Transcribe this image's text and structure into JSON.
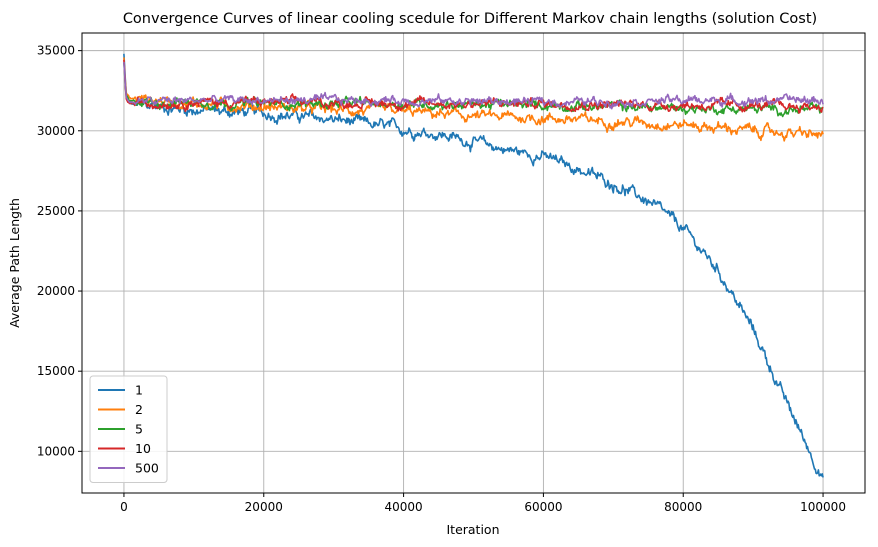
{
  "chart_data": {
    "type": "line",
    "title": "Convergence Curves of linear cooling scedule for Different Markov chain lengths (solution Cost)",
    "xlabel": "Iteration",
    "ylabel": "Average Path Length",
    "xlim": [
      -6000,
      106000
    ],
    "ylim": [
      7400,
      36100
    ],
    "x_ticks": [
      0,
      20000,
      40000,
      60000,
      80000,
      100000
    ],
    "x_tick_labels": [
      "0",
      "20000",
      "40000",
      "60000",
      "80000",
      "100000"
    ],
    "y_ticks": [
      10000,
      15000,
      20000,
      25000,
      30000,
      35000
    ],
    "y_tick_labels": [
      "10000",
      "15000",
      "20000",
      "25000",
      "30000",
      "35000"
    ],
    "grid": true,
    "legend_position": "lower-left",
    "series": [
      {
        "name": "1",
        "color": "#1f77b4",
        "x": [
          0,
          300,
          800,
          2000,
          5000,
          10000,
          15000,
          20000,
          25000,
          30000,
          35000,
          40000,
          45000,
          50000,
          55000,
          60000,
          65000,
          70000,
          75000,
          80000,
          85000,
          90000,
          95000,
          100000
        ],
        "y": [
          34800,
          32300,
          31700,
          31600,
          31500,
          31300,
          31200,
          31100,
          30900,
          30700,
          30400,
          30100,
          29800,
          29300,
          28800,
          28400,
          27600,
          26700,
          25600,
          23900,
          21300,
          17600,
          12800,
          8300
        ],
        "noise": 320
      },
      {
        "name": "2",
        "color": "#ff7f0e",
        "x": [
          0,
          300,
          800,
          2000,
          5000,
          10000,
          20000,
          30000,
          40000,
          50000,
          60000,
          70000,
          80000,
          90000,
          100000
        ],
        "y": [
          34500,
          32400,
          32000,
          32000,
          31900,
          31700,
          31500,
          31300,
          31200,
          30900,
          30800,
          30600,
          30400,
          30000,
          29700
        ],
        "noise": 300
      },
      {
        "name": "5",
        "color": "#2ca02c",
        "x": [
          0,
          300,
          800,
          2000,
          10000,
          20000,
          40000,
          60000,
          80000,
          100000
        ],
        "y": [
          34200,
          32200,
          31800,
          31800,
          31800,
          31700,
          31700,
          31600,
          31400,
          31300
        ],
        "noise": 260
      },
      {
        "name": "10",
        "color": "#d62728",
        "x": [
          0,
          300,
          800,
          2000,
          10000,
          20000,
          40000,
          60000,
          80000,
          100000
        ],
        "y": [
          34400,
          32000,
          31700,
          31700,
          31800,
          31800,
          31700,
          31700,
          31600,
          31500
        ],
        "noise": 260
      },
      {
        "name": "500",
        "color": "#9467bd",
        "x": [
          0,
          300,
          800,
          2000,
          10000,
          20000,
          40000,
          60000,
          80000,
          100000
        ],
        "y": [
          34300,
          32100,
          31800,
          31800,
          31900,
          31900,
          31900,
          31800,
          31900,
          31900
        ],
        "noise": 240
      }
    ]
  }
}
